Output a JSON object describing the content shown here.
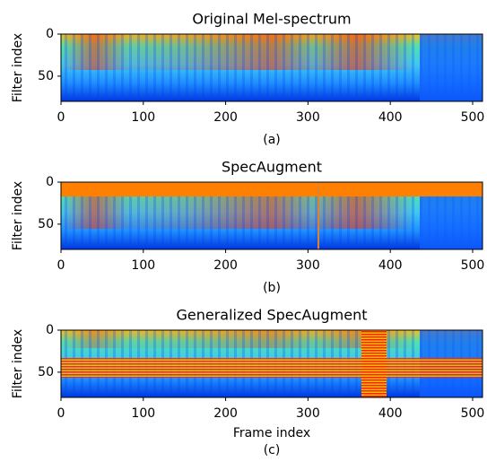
{
  "chart_data": [
    {
      "type": "heatmap",
      "title": "Original Mel-spectrum",
      "ylabel": "Filter index",
      "caption": "(a)",
      "xlim": [
        0,
        512
      ],
      "ylim": [
        80,
        0
      ],
      "xticks": [
        0,
        100,
        200,
        300,
        400,
        500
      ],
      "yticks": [
        0,
        50
      ]
    },
    {
      "type": "heatmap",
      "title": "SpecAugment",
      "ylabel": "Filter index",
      "caption": "(b)",
      "xlim": [
        0,
        512
      ],
      "ylim": [
        80,
        0
      ],
      "xticks": [
        0,
        100,
        200,
        300,
        400,
        500
      ],
      "yticks": [
        0,
        50
      ]
    },
    {
      "type": "heatmap",
      "title": "Generalized SpecAugment",
      "ylabel": "Filter index",
      "xlabel": "Frame index",
      "caption": "(c)",
      "xlim": [
        0,
        512
      ],
      "ylim": [
        80,
        0
      ],
      "xticks": [
        0,
        100,
        200,
        300,
        400,
        500
      ],
      "yticks": [
        0,
        50
      ]
    }
  ]
}
